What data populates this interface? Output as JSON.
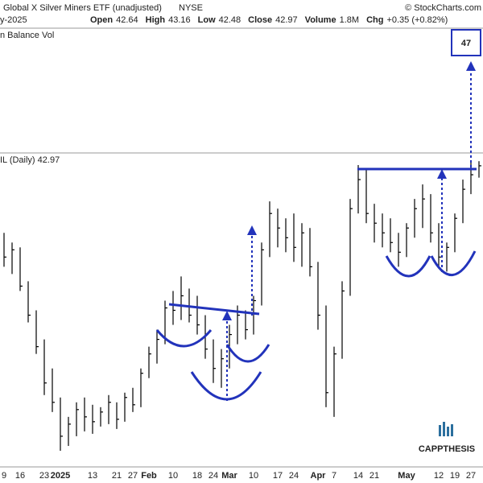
{
  "header": {
    "title": "Global X Silver Miners ETF (unadjusted)",
    "exchange": "NYSE",
    "source": "© StockCharts.com",
    "date": "y-2025",
    "fields": [
      {
        "label": "Open",
        "value": "42.64"
      },
      {
        "label": "High",
        "value": "43.16"
      },
      {
        "label": "Low",
        "value": "42.48"
      },
      {
        "label": "Close",
        "value": "42.97"
      },
      {
        "label": "Volume",
        "value": "1.8M"
      },
      {
        "label": "Chg",
        "value": "+0.35 (+0.82%)"
      }
    ]
  },
  "panels": [
    "n Balance Vol",
    "IL (Daily) 42.97"
  ],
  "annotation": "47",
  "logo": "CAPPTHESIS",
  "chart_data": {
    "type": "ohlc",
    "color": "#000000",
    "categories": [
      "9",
      null,
      "16",
      null,
      null,
      "23",
      null,
      "2025",
      null,
      null,
      null,
      "13",
      null,
      null,
      "21",
      null,
      "27",
      null,
      "Feb",
      null,
      null,
      "10",
      null,
      null,
      "18",
      null,
      "24",
      null,
      "Mar",
      null,
      null,
      "10",
      null,
      null,
      "17",
      null,
      "24",
      null,
      null,
      "Apr",
      null,
      "7",
      null,
      null,
      "14",
      null,
      "21",
      null,
      null,
      null,
      "May",
      null,
      null,
      null,
      "12",
      null,
      "19",
      null,
      "27",
      null
    ],
    "high": [
      40.2,
      39.8,
      39.6,
      38.2,
      37.0,
      35.8,
      34.6,
      33.4,
      32.6,
      33.2,
      33.4,
      33.1,
      33.0,
      33.5,
      33.2,
      33.6,
      33.8,
      34.6,
      35.5,
      36.2,
      37.4,
      37.8,
      38.4,
      37.9,
      37.6,
      36.8,
      35.8,
      35.4,
      36.4,
      37.2,
      37.0,
      37.6,
      39.8,
      41.5,
      41.2,
      40.8,
      41.0,
      40.6,
      40.4,
      39.0,
      37.2,
      35.5,
      38.2,
      41.6,
      43.0,
      42.8,
      41.4,
      41.0,
      40.8,
      40.2,
      40.6,
      41.6,
      42.2,
      41.8,
      40.6,
      39.8,
      41.0,
      42.4,
      43.2,
      43.16
    ],
    "low": [
      38.8,
      38.5,
      37.8,
      36.5,
      35.2,
      33.5,
      32.8,
      31.2,
      31.4,
      31.8,
      32.0,
      31.9,
      32.2,
      32.3,
      32.1,
      32.4,
      32.8,
      33.0,
      34.2,
      34.8,
      35.6,
      36.4,
      36.6,
      36.5,
      36.0,
      35.0,
      34.0,
      33.8,
      34.6,
      35.6,
      35.8,
      36.0,
      37.2,
      39.2,
      39.6,
      39.4,
      39.0,
      38.8,
      38.4,
      36.2,
      33.0,
      32.6,
      35.0,
      37.6,
      41.0,
      40.6,
      39.8,
      39.6,
      39.4,
      38.8,
      39.2,
      40.0,
      40.4,
      39.8,
      38.8,
      38.6,
      39.4,
      40.6,
      41.8,
      42.48
    ],
    "close": [
      39.2,
      39.5,
      38.0,
      36.8,
      35.5,
      34.0,
      33.2,
      31.8,
      32.3,
      32.9,
      32.6,
      32.4,
      32.8,
      33.2,
      32.5,
      33.4,
      33.1,
      34.4,
      35.2,
      35.8,
      37.1,
      37.0,
      37.6,
      36.8,
      36.4,
      35.4,
      34.6,
      35.0,
      36.0,
      36.8,
      36.2,
      37.4,
      39.5,
      41.0,
      40.4,
      40.0,
      39.6,
      40.2,
      38.8,
      36.8,
      33.6,
      35.2,
      37.8,
      41.2,
      42.4,
      41.0,
      40.6,
      40.2,
      39.8,
      39.4,
      40.4,
      41.2,
      41.6,
      40.2,
      39.2,
      39.6,
      40.8,
      42.0,
      42.6,
      42.97
    ],
    "ylim": [
      30.6,
      43.5
    ]
  }
}
